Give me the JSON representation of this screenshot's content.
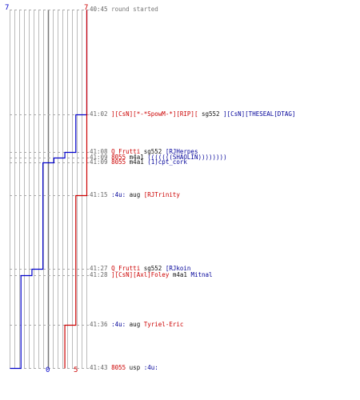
{
  "chart_data": {
    "type": "line",
    "timeline": {
      "x_range": [
        0,
        7
      ],
      "events": [
        {
          "time": "40:45",
          "blue": 7,
          "red": 7,
          "text": [
            {
              "t": "round started",
              "c": "gray"
            }
          ]
        },
        {
          "time": "41:02",
          "blue": 6,
          "red": 7,
          "text": [
            {
              "t": "][CsN][*-*SpowM-*][RIP][",
              "c": "red"
            },
            {
              "t": " sg552 ",
              "c": "black"
            },
            {
              "t": "][CsN][THESEAL[DTAG]",
              "c": "blue"
            }
          ]
        },
        {
          "time": "41:08",
          "blue": 5,
          "red": 7,
          "text": [
            {
              "t": "Q_Frutti",
              "c": "red"
            },
            {
              "t": " sg552 ",
              "c": "black"
            },
            {
              "t": "[RJHerpes",
              "c": "blue"
            }
          ]
        },
        {
          "time": "41:09",
          "blue": 4,
          "red": 7,
          "text": [
            {
              "t": "8055",
              "c": "red"
            },
            {
              "t": " m4a1 ",
              "c": "black"
            },
            {
              "t": "(((((((SHAOLIN))))))))",
              "c": "blue"
            }
          ]
        },
        {
          "time": "41:09",
          "blue": 3,
          "red": 7,
          "text": [
            {
              "t": "8055",
              "c": "red"
            },
            {
              "t": " m4a1 ",
              "c": "black"
            },
            {
              "t": "(1)cpt_cork",
              "c": "blue"
            }
          ]
        },
        {
          "time": "41:15",
          "blue": 3,
          "red": 6,
          "text": [
            {
              "t": ":4u:",
              "c": "blue"
            },
            {
              "t": " aug ",
              "c": "black"
            },
            {
              "t": "[RJTrinity",
              "c": "red"
            }
          ]
        },
        {
          "time": "41:27",
          "blue": 2,
          "red": 6,
          "text": [
            {
              "t": "Q_Frutti",
              "c": "red"
            },
            {
              "t": " sg552 ",
              "c": "black"
            },
            {
              "t": "[RJkoin",
              "c": "blue"
            }
          ]
        },
        {
          "time": "41:28",
          "blue": 1,
          "red": 6,
          "text": [
            {
              "t": "][CsN][Axl]Foley",
              "c": "red"
            },
            {
              "t": " m4a1 ",
              "c": "black"
            },
            {
              "t": "Mitnal",
              "c": "blue"
            }
          ]
        },
        {
          "time": "41:36",
          "blue": 1,
          "red": 5,
          "text": [
            {
              "t": ":4u:",
              "c": "blue"
            },
            {
              "t": " aug ",
              "c": "black"
            },
            {
              "t": "Tyriel-Eric",
              "c": "red"
            }
          ]
        },
        {
          "time": "41:43",
          "blue": 0,
          "red": 5,
          "text": [
            {
              "t": "8055",
              "c": "red"
            },
            {
              "t": " usp ",
              "c": "black"
            },
            {
              "t": ":4u:",
              "c": "blue"
            }
          ]
        }
      ]
    },
    "series": [
      {
        "color": "#0000cc",
        "start": 7,
        "end": 0
      },
      {
        "color": "#cc0000",
        "start": 7,
        "end": 5
      }
    ]
  },
  "labels": {
    "blue_start": "7",
    "red_start": "7",
    "blue_end": "0",
    "red_end": "5"
  },
  "colors": {
    "blue": "#0000cc",
    "red": "#cc0000",
    "grid": "#bbbbbb",
    "dashed": "#aaaaaa",
    "midline": "#777777"
  }
}
